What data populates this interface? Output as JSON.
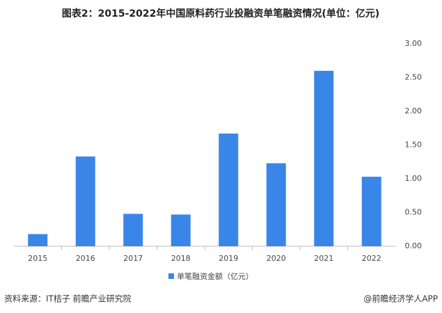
{
  "chart_data": {
    "type": "bar",
    "title": "图表2：2015-2022年中国原料药行业投融资单笔融资情况(单位：亿元)",
    "categories": [
      "2015",
      "2016",
      "2017",
      "2018",
      "2019",
      "2020",
      "2021",
      "2022"
    ],
    "series": [
      {
        "name": "单笔融资金额（亿元）",
        "color": "#3a86e8",
        "values": [
          0.18,
          1.33,
          0.48,
          0.47,
          1.67,
          1.23,
          2.6,
          1.03
        ]
      }
    ],
    "ylim": [
      0,
      3
    ],
    "yticks": [
      {
        "value": 0,
        "label": "0.00"
      },
      {
        "value": 0.5,
        "label": "0.50"
      },
      {
        "value": 1,
        "label": "1.00"
      },
      {
        "value": 1.5,
        "label": "1.50"
      },
      {
        "value": 2,
        "label": "2.00"
      },
      {
        "value": 2.5,
        "label": "2.50"
      },
      {
        "value": 3,
        "label": "3.00"
      }
    ],
    "grid": false,
    "source": "资料来源：IT桔子 前瞻产业研究院",
    "credit": "@前瞻经济学人APP"
  }
}
